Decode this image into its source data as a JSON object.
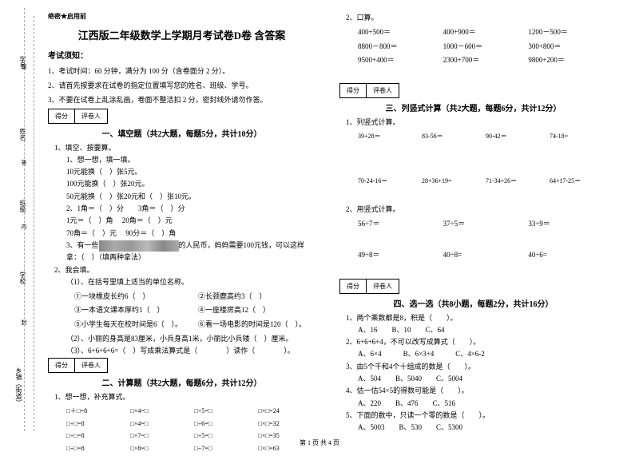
{
  "secret": "绝密★启用前",
  "title": "江西版二年级数学上学期月考试卷D卷 含答案",
  "noticeTitle": "考试须知：",
  "notices": [
    "1、考试时间：60 分钟，满分为 100 分（含卷面分 2 分）。",
    "2、请首先按要求在试卷的指定位置填写您的姓名、班级、学号。",
    "3、不要在试卷上乱涂乱画，卷面不整洁扣 2 分，密封线外请勿作答。"
  ],
  "scoreCols": [
    "得分",
    "评卷人"
  ],
  "sec1Title": "一、填空题（共2大题，每题5分，共计10分）",
  "q1": {
    "head": "1、填空、按要算。",
    "l1": "1、想一想，填一填。",
    "a": "10元能换（　）张5元。",
    "b": "100元能换（　）张20元。",
    "c": "50元能换（　）张20元和（　）张10元。",
    "d": "2、1角＝（　）分　　3角＝（　）分",
    "e": "1元＝（　）角　  20角＝（　）元",
    "f": "70角＝（　）元　  90分＝（　）角",
    "g": "3、有一些",
    "g2": "的人民币，妈妈需要100元钱，可以这样拿：（　）（填两种拿法）"
  },
  "q2": {
    "head": "2、我会填。",
    "a": "（1）、在括号里填上适当的单位名称。",
    "b1": "①一块橡皮长约6（　）",
    "b2": "②长颈鹿高约3（　）",
    "b3": "③一本语文课本厚约1（　）",
    "b4": "④一座楼房高12（　）",
    "b5": "⑤小学生每天在校时间是6（　）。",
    "b6": "⑥看一场电影的时间是120（　）。",
    "c": "（2）、小丽的身高是83厘米，小兵身高1米，小丽比小兵矮（　）厘米。",
    "d": "（3）、6+6+6+6=（　）写成乘法算式是（　　　　）读作（　　　　）。"
  },
  "sec2Title": "二、计算题（共2大题，每题6分，共计12分）",
  "calc1": {
    "head": "1、想一想，补充算式。",
    "rows": [
      [
        "□＋□=8",
        "□×4=□",
        "□÷5=□",
        "□×□=24"
      ],
      [
        "□÷□=8",
        "□×4=□",
        "□÷6=□",
        "□×□=32"
      ],
      [
        "□÷□=8",
        "□×7=□",
        "□÷5=□",
        "□×□=35"
      ],
      [
        "□÷□=8",
        "□×8=□",
        "□÷7=□",
        "□×□=63"
      ]
    ]
  },
  "calc2": {
    "head": "2、口算。",
    "rows": [
      [
        "400+500＝",
        "400+900＝",
        "1200－500＝"
      ],
      [
        "8800－800＝",
        "1000－600＝",
        "300+800＝"
      ],
      [
        "9500+400＝",
        "2300+700＝",
        "9800+200＝"
      ]
    ]
  },
  "sec3Title": "三、列竖式计算（共2大题，每题6分，共计12分）",
  "vert1": {
    "head": "1、列竖式计算。",
    "r1": [
      "39+28＝",
      "83-56＝",
      "90-42＝",
      "74-18="
    ],
    "r2": [
      "70-24-16＝",
      "28+36+19=",
      "71-34+26＝",
      "64+17-25＝"
    ]
  },
  "vert2": {
    "head": "2、用竖式计算。",
    "r1": [
      "56÷7＝",
      "37÷5＝",
      "33÷9＝"
    ],
    "r2": [
      "49÷8＝",
      "40÷8=",
      "40÷6="
    ]
  },
  "sec4Title": "四、选一选（共8小题，每题2分，共计16分）",
  "choose": [
    {
      "q": "1、两个乘数都是8，积是（　　）。",
      "opts": "A、16　　B、10　　C、64"
    },
    {
      "q": "2、6+6+6+4，不可以改写成算式（　　）。",
      "opts": "A、6×4　　　B、6×3+4　　　C、4×6-2"
    },
    {
      "q": "3、由5个千和4个十组成的数是（　　）。",
      "opts": "A、504　　B、5040　　C、5004"
    },
    {
      "q": "4、估一估54×5的得数可能是（　　）。",
      "opts": "A、220　　B、476　　C、516"
    },
    {
      "q": "5、下面的数中，只读一个零的数是（　　）。",
      "opts": "A、5003　　B、530　　C、5300"
    }
  ],
  "side": {
    "s1": "学号",
    "s2": "姓名",
    "s3": "班级",
    "s4": "学校",
    "s5": "乡镇（街道）"
  },
  "dash": {
    "d1": "题",
    "d2": "答",
    "d3": "内",
    "d4": "封"
  },
  "footer": "第 1 页 共 4 页"
}
